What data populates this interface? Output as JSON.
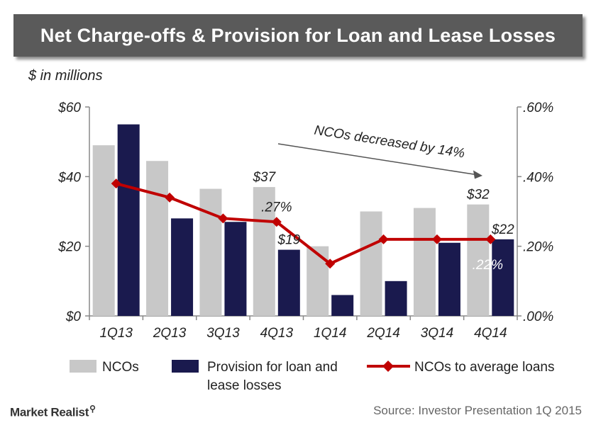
{
  "chart_data": {
    "type": "bar",
    "title": "Net Charge-offs & Provision for Loan and Lease Losses",
    "unit_label": "$ in millions",
    "categories": [
      "1Q13",
      "2Q13",
      "3Q13",
      "4Q13",
      "1Q14",
      "2Q14",
      "3Q14",
      "4Q14"
    ],
    "series": [
      {
        "name": "NCOs",
        "kind": "bar",
        "axis": "left",
        "color": "#c8c8c8",
        "values": [
          49,
          44.5,
          36.5,
          37,
          20,
          30,
          31,
          32
        ]
      },
      {
        "name": "Provision for loan and lease losses",
        "kind": "bar",
        "axis": "left",
        "color": "#1a1a4e",
        "values": [
          55,
          28,
          27,
          19,
          6,
          10,
          21,
          22
        ]
      },
      {
        "name": "NCOs to average loans",
        "kind": "line",
        "axis": "right",
        "color": "#c00000",
        "values": [
          0.38,
          0.34,
          0.28,
          0.27,
          0.15,
          0.22,
          0.22,
          0.22
        ]
      }
    ],
    "left_axis": {
      "min": 0,
      "max": 60,
      "ticks": [
        "$0",
        "$20",
        "$40",
        "$60"
      ],
      "tick_values": [
        0,
        20,
        40,
        60
      ]
    },
    "right_axis": {
      "min": 0,
      "max": 0.6,
      "ticks": [
        ".00%",
        ".20%",
        ".40%",
        ".60%"
      ],
      "tick_values": [
        0,
        0.2,
        0.4,
        0.6
      ]
    },
    "data_labels": [
      {
        "text": "$37",
        "series": 0,
        "index": 3,
        "color": "#222222"
      },
      {
        "text": ".27%",
        "series": 2,
        "index": 3,
        "color": "#222222"
      },
      {
        "text": "$19",
        "series": 1,
        "index": 3,
        "color": "#222222"
      },
      {
        "text": "$32",
        "series": 0,
        "index": 7,
        "color": "#222222"
      },
      {
        "text": "$22",
        "series": 1,
        "index": 7,
        "color": "#222222"
      },
      {
        "text": ".22%",
        "series": 2,
        "index": 7,
        "color": "#ffffff"
      }
    ],
    "annotation": {
      "text": "NCOs decreased by 14%"
    },
    "legend_position": "bottom",
    "grid": false
  },
  "source": "Source: Investor Presentation 1Q 2015",
  "brand": "Market Realist"
}
